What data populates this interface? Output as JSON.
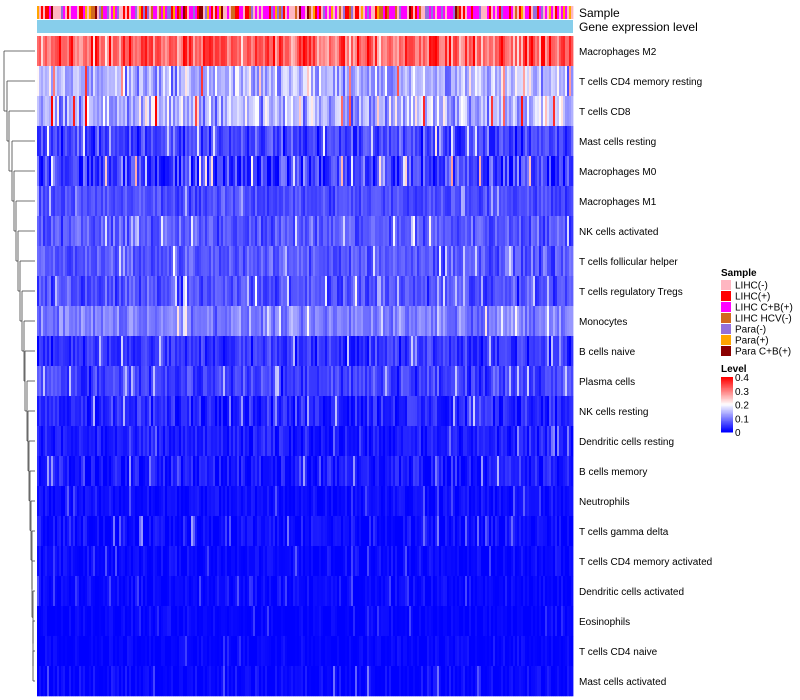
{
  "chart_data": {
    "type": "heatmap",
    "annotation_tracks": [
      "Sample",
      "Gene expression level"
    ],
    "rows": [
      {
        "label": "Macrophages M2",
        "mean": 0.32,
        "spread": 0.08
      },
      {
        "label": "T cells CD4 memory resting",
        "mean": 0.14,
        "spread": 0.07
      },
      {
        "label": "T cells CD8",
        "mean": 0.15,
        "spread": 0.08
      },
      {
        "label": "Mast cells resting",
        "mean": 0.05,
        "spread": 0.05
      },
      {
        "label": "Macrophages M0",
        "mean": 0.05,
        "spread": 0.07
      },
      {
        "label": "Macrophages M1",
        "mean": 0.06,
        "spread": 0.03
      },
      {
        "label": "NK cells activated",
        "mean": 0.07,
        "spread": 0.04
      },
      {
        "label": "T cells follicular helper",
        "mean": 0.07,
        "spread": 0.04
      },
      {
        "label": "T cells regulatory  Tregs",
        "mean": 0.06,
        "spread": 0.04
      },
      {
        "label": "Monocytes",
        "mean": 0.1,
        "spread": 0.04
      },
      {
        "label": "B cells naive",
        "mean": 0.04,
        "spread": 0.04
      },
      {
        "label": "Plasma cells",
        "mean": 0.05,
        "spread": 0.04
      },
      {
        "label": "NK cells resting",
        "mean": 0.03,
        "spread": 0.04
      },
      {
        "label": "Dendritic cells resting",
        "mean": 0.02,
        "spread": 0.03
      },
      {
        "label": "B cells memory",
        "mean": 0.02,
        "spread": 0.04
      },
      {
        "label": "Neutrophils",
        "mean": 0.01,
        "spread": 0.02
      },
      {
        "label": "T cells gamma delta",
        "mean": 0.01,
        "spread": 0.03
      },
      {
        "label": "T cells CD4 memory activated",
        "mean": 0.005,
        "spread": 0.02
      },
      {
        "label": "Dendritic cells activated",
        "mean": 0.005,
        "spread": 0.02
      },
      {
        "label": "Eosinophils",
        "mean": 0.003,
        "spread": 0.015
      },
      {
        "label": "T cells CD4 naive",
        "mean": 0.003,
        "spread": 0.015
      },
      {
        "label": "Mast cells activated",
        "mean": 0.005,
        "spread": 0.025
      }
    ],
    "sample_legend": {
      "title": "Sample",
      "items": [
        {
          "label": "LIHC(-)",
          "color": "#FFB6C1"
        },
        {
          "label": "LIHC(+)",
          "color": "#FF0000"
        },
        {
          "label": "LIHC C+B(+)",
          "color": "#FF00FF"
        },
        {
          "label": "LIHC HCV(-)",
          "color": "#D2691E"
        },
        {
          "label": "Para(-)",
          "color": "#9370DB"
        },
        {
          "label": "Para(+)",
          "color": "#FFA500"
        },
        {
          "label": "Para C+B(+)",
          "color": "#8B0000"
        }
      ]
    },
    "level_legend": {
      "title": "Level",
      "ticks": [
        "0.4",
        "0.3",
        "0.2",
        "0.1",
        "0"
      ],
      "range": [
        0,
        0.4
      ]
    },
    "expression_track_color": "#87CEEB",
    "colorscale": {
      "low": "#0000FF",
      "mid": "#FFFFFF",
      "high": "#FF0000"
    }
  }
}
